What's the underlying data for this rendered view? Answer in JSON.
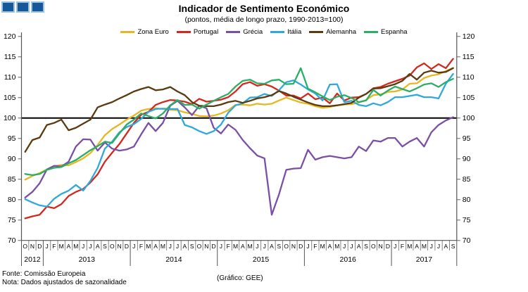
{
  "logo": {
    "square_count": 3,
    "fill": "#16589A",
    "border": "#9DC3DF"
  },
  "title": "Indicador de Sentimento Económico",
  "subtitle": "(pontos, média de longo prazo, 1990-2013=100)",
  "footer": {
    "fonte": "Fonte: Comissão Europeia",
    "nota": "Nota: Dados ajustados de sazonalidade",
    "credit": "(Gráfico: GEE)"
  },
  "chart_data": {
    "type": "line",
    "title": "Indicador de Sentimento Económico",
    "subtitle": "(pontos, média de longo prazo, 1990-2013=100)",
    "xlabel": "",
    "ylabel": "",
    "ylim": [
      70,
      120
    ],
    "ytick_step": 5,
    "reference_line": 100,
    "legend_position": "top",
    "grid": false,
    "axis_color": "#555555",
    "tick_color": "#888888",
    "reference_line_color": "#000000",
    "months": [
      "O",
      "N",
      "D",
      "J",
      "F",
      "M",
      "A",
      "M",
      "J",
      "J",
      "A",
      "S",
      "O",
      "N",
      "D",
      "J",
      "F",
      "M",
      "A",
      "M",
      "J",
      "J",
      "A",
      "S",
      "O",
      "N",
      "D",
      "J",
      "F",
      "M",
      "A",
      "M",
      "J",
      "J",
      "A",
      "S",
      "O",
      "N",
      "D",
      "J",
      "F",
      "M",
      "A",
      "M",
      "J",
      "J",
      "A",
      "S",
      "O",
      "N",
      "D",
      "J",
      "F",
      "M",
      "A",
      "M",
      "J",
      "J",
      "A",
      "S"
    ],
    "years": [
      {
        "label": "2012",
        "start": 0,
        "end": 3
      },
      {
        "label": "2013",
        "start": 3,
        "end": 15
      },
      {
        "label": "2014",
        "start": 15,
        "end": 27
      },
      {
        "label": "2015",
        "start": 27,
        "end": 39
      },
      {
        "label": "2016",
        "start": 39,
        "end": 51
      },
      {
        "label": "2017",
        "start": 51,
        "end": 60
      }
    ],
    "series": [
      {
        "name": "Zona Euro",
        "color": "#E7B722",
        "values": [
          84.9,
          85.8,
          86.5,
          87.4,
          88.2,
          88.5,
          88.4,
          89.2,
          90.1,
          91.4,
          93.4,
          95.8,
          97.3,
          98.4,
          99.6,
          100.6,
          101.8,
          102.2,
          102.4,
          102.2,
          102.0,
          101.9,
          101.4,
          101.0,
          100.5,
          100.4,
          100.6,
          101.1,
          101.9,
          103.2,
          103.3,
          103.1,
          103.5,
          103.3,
          103.5,
          104.3,
          105.0,
          104.4,
          103.8,
          103.5,
          102.9,
          102.5,
          102.7,
          103.1,
          103.3,
          103.4,
          103.8,
          104.4,
          105.6,
          105.8,
          106.4,
          106.5,
          107.0,
          108.4,
          108.5,
          109.8,
          110.4,
          110.7,
          111.5,
          112.3
        ]
      },
      {
        "name": "Portugal",
        "color": "#D3281E",
        "values": [
          75.4,
          75.9,
          76.3,
          78.3,
          77.9,
          78.9,
          80.9,
          81.9,
          82.6,
          84.2,
          86.2,
          89.3,
          91.5,
          93.6,
          96.2,
          98.8,
          100.8,
          101.5,
          103.2,
          103.9,
          104.4,
          104.3,
          104.0,
          103.4,
          104.7,
          104.0,
          104.2,
          104.5,
          105.1,
          106.5,
          108.3,
          108.8,
          107.9,
          108.3,
          107.7,
          106.7,
          105.5,
          105.5,
          104.8,
          106.0,
          104.6,
          105.0,
          103.6,
          106.0,
          104.3,
          105.0,
          105.1,
          105.9,
          107.3,
          107.6,
          108.4,
          109.0,
          109.6,
          110.4,
          112.4,
          113.4,
          112.0,
          113.2,
          112.2,
          114.5
        ]
      },
      {
        "name": "Grécia",
        "color": "#7A4FA6",
        "values": [
          80.5,
          81.9,
          84.0,
          87.4,
          88.3,
          88.1,
          89.3,
          93.0,
          94.8,
          94.7,
          92.0,
          94.0,
          92.5,
          92.0,
          92.3,
          93.0,
          96.0,
          98.8,
          96.8,
          98.8,
          103.0,
          104.2,
          102.6,
          100.7,
          103.0,
          102.4,
          97.6,
          96.2,
          98.4,
          97.1,
          94.6,
          92.6,
          90.8,
          90.1,
          76.3,
          81.3,
          87.3,
          87.6,
          87.7,
          92.2,
          89.8,
          90.4,
          90.7,
          90.4,
          90.1,
          90.4,
          93.0,
          91.9,
          94.5,
          94.2,
          95.1,
          95.1,
          93.0,
          94.2,
          95.1,
          93.0,
          96.5,
          98.3,
          99.4,
          100.2
        ]
      },
      {
        "name": "Itália",
        "color": "#2FA9DC",
        "values": [
          80.1,
          79.3,
          78.6,
          78.3,
          80.2,
          81.4,
          82.2,
          83.6,
          82.2,
          84.6,
          87.8,
          92.5,
          94.2,
          96.5,
          97.8,
          98.5,
          99.8,
          101.5,
          102.2,
          102.3,
          102.2,
          102.2,
          98.3,
          97.7,
          96.8,
          96.1,
          96.8,
          98.4,
          101.3,
          103.1,
          103.6,
          105.0,
          105.1,
          105.9,
          105.4,
          106.8,
          108.8,
          109.2,
          108.2,
          107.0,
          106.0,
          104.3,
          108.2,
          108.3,
          103.9,
          104.2,
          103.2,
          102.9,
          103.6,
          103.1,
          103.9,
          105.1,
          105.1,
          105.4,
          105.7,
          105.1,
          105.1,
          104.8,
          108.4,
          110.8
        ]
      },
      {
        "name": "Alemanha",
        "color": "#5B3A10",
        "values": [
          91.7,
          94.6,
          95.2,
          98.3,
          98.8,
          99.6,
          97.0,
          97.6,
          98.6,
          99.6,
          102.6,
          103.3,
          103.9,
          104.8,
          105.6,
          106.5,
          107.1,
          107.6,
          106.8,
          107.0,
          107.6,
          106.5,
          105.6,
          103.9,
          103.0,
          102.9,
          102.9,
          103.3,
          103.9,
          104.2,
          103.7,
          104.2,
          104.8,
          105.1,
          105.6,
          106.6,
          106.0,
          105.2,
          104.5,
          103.8,
          103.2,
          102.9,
          102.9,
          103.1,
          103.4,
          103.7,
          105.0,
          105.9,
          107.2,
          107.3,
          107.8,
          108.3,
          109.1,
          110.8,
          109.4,
          111.1,
          111.6,
          111.1,
          111.3,
          112.2
        ]
      },
      {
        "name": "Espanha",
        "color": "#2BAE66",
        "values": [
          86.3,
          86.0,
          86.3,
          87.3,
          87.8,
          88.0,
          88.9,
          89.7,
          90.9,
          92.1,
          93.1,
          94.2,
          93.9,
          96.2,
          98.4,
          99.6,
          101.1,
          100.5,
          99.9,
          101.1,
          103.1,
          104.4,
          103.2,
          103.3,
          102.3,
          103.3,
          104.2,
          105.1,
          105.9,
          107.7,
          109.1,
          109.4,
          108.5,
          108.4,
          109.2,
          109.4,
          108.3,
          108.4,
          112.2,
          107.2,
          106.3,
          105.3,
          104.4,
          105.2,
          105.6,
          104.9,
          103.9,
          104.3,
          106.9,
          105.5,
          106.7,
          107.7,
          107.1,
          106.5,
          107.3,
          108.2,
          108.5,
          107.6,
          108.8,
          109.6
        ]
      }
    ]
  }
}
